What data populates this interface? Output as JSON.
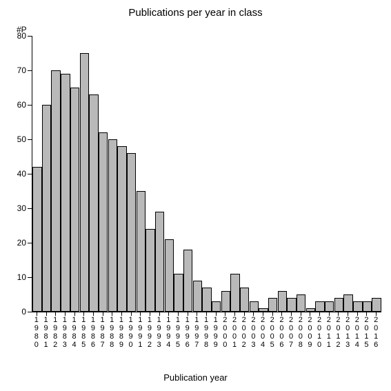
{
  "chart": {
    "type": "bar",
    "title": "Publications per year in class",
    "y_axis_label": "#P",
    "x_axis_title": "Publication year",
    "ylim": [
      0,
      80
    ],
    "ytick_step": 10,
    "background_color": "#ffffff",
    "bar_fill_color": "#b9b9b9",
    "bar_border_color": "#000000",
    "axis_color": "#000000",
    "title_fontsize": 15,
    "tick_fontsize": 12,
    "categories": [
      "1980",
      "1981",
      "1982",
      "1983",
      "1984",
      "1985",
      "1986",
      "1987",
      "1988",
      "1989",
      "1990",
      "1991",
      "1992",
      "1993",
      "1994",
      "1995",
      "1996",
      "1997",
      "1998",
      "1999",
      "2000",
      "2001",
      "2002",
      "2003",
      "2004",
      "2005",
      "2006",
      "2007",
      "2008",
      "2009",
      "2010",
      "2011",
      "2012",
      "2013",
      "2014",
      "2015",
      "2016"
    ],
    "values": [
      42,
      60,
      70,
      69,
      65,
      75,
      63,
      52,
      50,
      48,
      46,
      35,
      24,
      29,
      21,
      11,
      18,
      9,
      7,
      3,
      6,
      11,
      7,
      3,
      1,
      4,
      6,
      4,
      5,
      1,
      3,
      3,
      4,
      5,
      3,
      3,
      4
    ]
  }
}
